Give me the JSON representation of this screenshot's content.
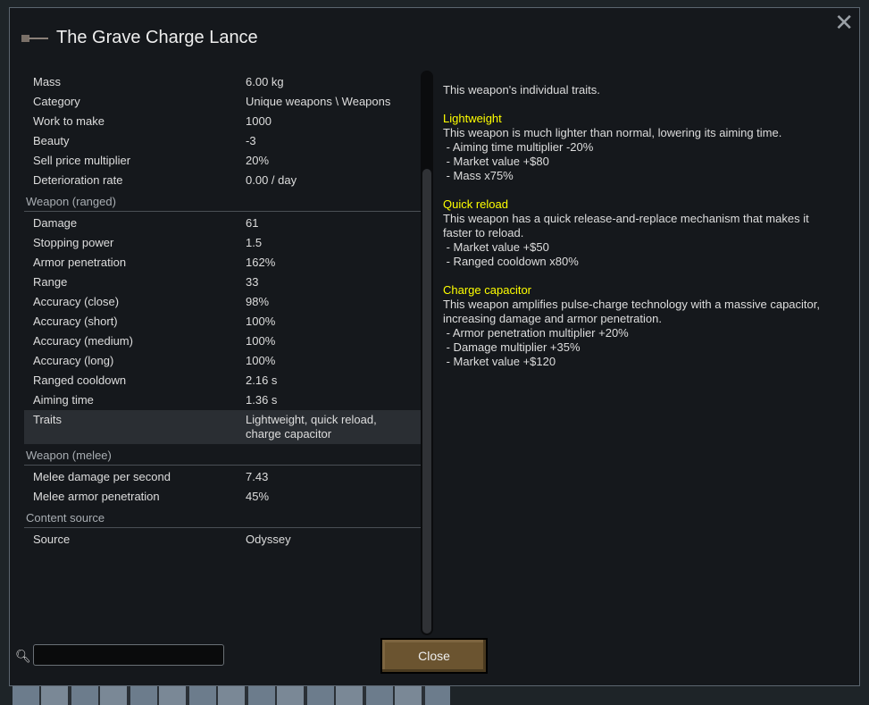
{
  "title": "The Grave Charge Lance",
  "general": [
    {
      "label": "Mass",
      "value": "6.00 kg"
    },
    {
      "label": "Category",
      "value": "Unique weapons \\ Weapons"
    },
    {
      "label": "Work to make",
      "value": "1000"
    },
    {
      "label": "Beauty",
      "value": "-3"
    },
    {
      "label": "Sell price multiplier",
      "value": "20%"
    },
    {
      "label": "Deterioration rate",
      "value": "0.00 / day"
    }
  ],
  "ranged_header": "Weapon (ranged)",
  "ranged": [
    {
      "label": "Damage",
      "value": "61"
    },
    {
      "label": "Stopping power",
      "value": "1.5"
    },
    {
      "label": "Armor penetration",
      "value": "162%"
    },
    {
      "label": "Range",
      "value": "33"
    },
    {
      "label": "Accuracy (close)",
      "value": "98%"
    },
    {
      "label": "Accuracy (short)",
      "value": "100%"
    },
    {
      "label": "Accuracy (medium)",
      "value": "100%"
    },
    {
      "label": "Accuracy (long)",
      "value": "100%"
    },
    {
      "label": "Ranged cooldown",
      "value": "2.16 s"
    },
    {
      "label": "Aiming time",
      "value": "1.36 s"
    },
    {
      "label": "Traits",
      "value": "Lightweight, quick reload, charge capacitor"
    }
  ],
  "melee_header": "Weapon (melee)",
  "melee": [
    {
      "label": "Melee damage per second",
      "value": "7.43"
    },
    {
      "label": "Melee armor penetration",
      "value": "45%"
    }
  ],
  "source_header": "Content source",
  "source": [
    {
      "label": "Source",
      "value": "Odyssey"
    }
  ],
  "description": {
    "intro": "This weapon's individual traits.",
    "traits": [
      {
        "name": "Lightweight",
        "text": "This weapon is much lighter than normal, lowering its aiming time.",
        "effects": [
          " - Aiming time multiplier -20%",
          " - Market value +$80",
          " - Mass x75%"
        ]
      },
      {
        "name": "Quick reload",
        "text": "This weapon has a quick release-and-replace mechanism that makes it faster to reload.",
        "effects": [
          " - Market value +$50",
          " - Ranged cooldown x80%"
        ]
      },
      {
        "name": "Charge capacitor",
        "text": "This weapon amplifies pulse-charge technology with a massive capacitor, increasing damage and armor penetration.",
        "effects": [
          " - Armor penetration multiplier +20%",
          " - Damage multiplier +35%",
          " - Market value +$120"
        ]
      }
    ]
  },
  "search": {
    "value": ""
  },
  "close_label": "Close",
  "scroll_fraction": 0.17
}
